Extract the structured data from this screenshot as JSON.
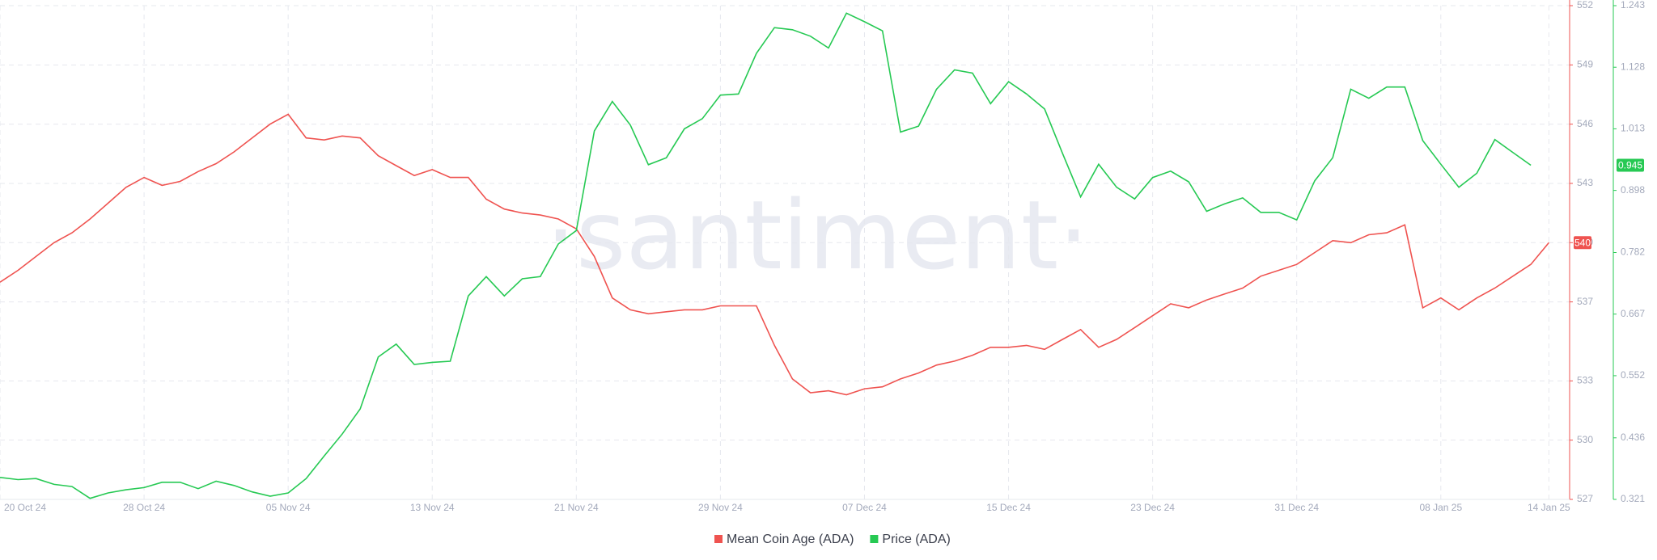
{
  "chart_data": {
    "type": "line",
    "watermark": "·santiment·",
    "categories": [
      "20 Oct 24",
      null,
      null,
      null,
      null,
      null,
      null,
      null,
      "28 Oct 24",
      null,
      null,
      null,
      null,
      null,
      null,
      null,
      "05 Nov 24",
      null,
      null,
      null,
      null,
      null,
      null,
      null,
      "13 Nov 24",
      null,
      null,
      null,
      null,
      null,
      null,
      null,
      "21 Nov 24",
      null,
      null,
      null,
      null,
      null,
      null,
      null,
      "29 Nov 24",
      null,
      null,
      null,
      null,
      null,
      null,
      null,
      "07 Dec 24",
      null,
      null,
      null,
      null,
      null,
      null,
      null,
      "15 Dec 24",
      null,
      null,
      null,
      null,
      null,
      null,
      null,
      "23 Dec 24",
      null,
      null,
      null,
      null,
      null,
      null,
      null,
      "31 Dec 24",
      null,
      null,
      null,
      null,
      null,
      null,
      null,
      "08 Jan 25",
      null,
      null,
      null,
      null,
      null,
      "14 Jan 25"
    ],
    "series": [
      {
        "name": "Mean Coin Age (ADA)",
        "color": "#ef5350",
        "values": [
          538.0,
          538.6,
          539.3,
          540.0,
          540.5,
          541.2,
          542.0,
          542.8,
          543.3,
          542.9,
          543.1,
          543.6,
          544.0,
          544.6,
          545.3,
          546.0,
          546.5,
          545.3,
          545.2,
          545.4,
          545.3,
          544.4,
          543.9,
          543.4,
          543.7,
          543.3,
          543.3,
          542.2,
          541.7,
          541.5,
          541.4,
          541.2,
          540.7,
          539.3,
          537.2,
          536.6,
          536.4,
          536.5,
          536.6,
          536.6,
          536.8,
          536.8,
          536.8,
          534.8,
          533.1,
          532.4,
          532.5,
          532.3,
          532.6,
          532.7,
          533.1,
          533.4,
          533.8,
          534.0,
          534.3,
          534.7,
          534.7,
          534.8,
          534.6,
          535.1,
          535.6,
          534.7,
          535.1,
          535.7,
          536.3,
          536.9,
          536.7,
          537.1,
          537.4,
          537.7,
          538.3,
          538.6,
          538.9,
          539.5,
          540.1,
          540.0,
          540.4,
          540.5,
          540.9,
          536.7,
          537.2,
          536.6,
          537.2,
          537.7,
          538.3,
          538.9,
          540
        ]
      },
      {
        "name": "Price (ADA)",
        "color": "#26c953",
        "axis": "y2",
        "values": [
          0.362,
          0.358,
          0.36,
          0.349,
          0.345,
          0.323,
          0.333,
          0.339,
          0.343,
          0.353,
          0.353,
          0.341,
          0.355,
          0.347,
          0.335,
          0.327,
          0.333,
          0.36,
          0.402,
          0.443,
          0.49,
          0.587,
          0.611,
          0.573,
          0.577,
          0.579,
          0.701,
          0.737,
          0.701,
          0.733,
          0.737,
          0.798,
          0.823,
          1.009,
          1.064,
          1.02,
          0.946,
          0.959,
          1.013,
          1.032,
          1.076,
          1.078,
          1.154,
          1.202,
          1.198,
          1.186,
          1.164,
          1.229,
          1.213,
          1.196,
          1.007,
          1.018,
          1.087,
          1.123,
          1.117,
          1.06,
          1.101,
          1.078,
          1.05,
          0.967,
          0.886,
          0.947,
          0.904,
          0.882,
          0.922,
          0.934,
          0.914,
          0.859,
          0.873,
          0.884,
          0.857,
          0.857,
          0.843,
          0.916,
          0.959,
          1.087,
          1.07,
          1.091,
          1.091,
          0.991,
          0.947,
          0.904,
          0.93,
          0.993,
          0.969,
          0.945,
          null
        ]
      }
    ],
    "ylim": [
      527,
      552
    ],
    "yticks": [
      527,
      530,
      533,
      537,
      540,
      543,
      546,
      549,
      552
    ],
    "y2lim": [
      0.321,
      1.243
    ],
    "y2ticks": [
      0.321,
      0.436,
      0.552,
      0.667,
      0.782,
      0.898,
      1.013,
      1.128,
      1.243
    ],
    "grid": true
  }
}
